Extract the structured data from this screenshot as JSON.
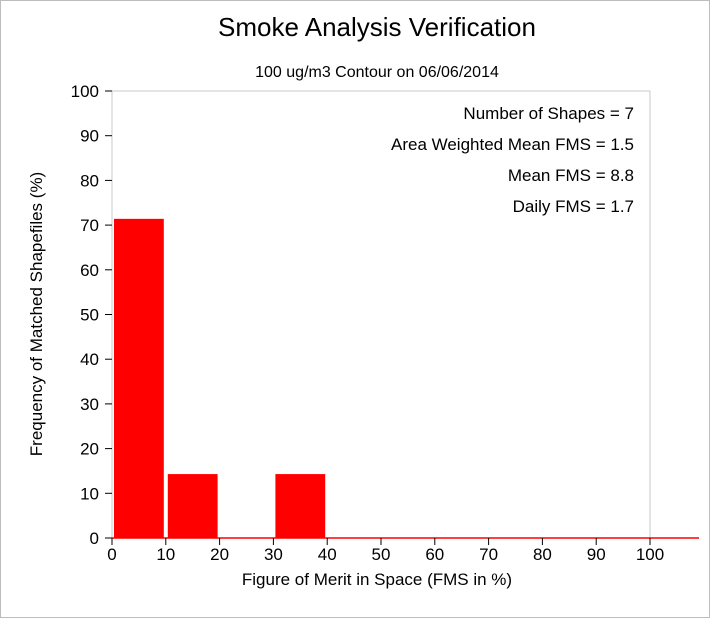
{
  "chart_data": {
    "type": "bar",
    "title": "Smoke Analysis Verification",
    "subtitle": "100 ug/m3 Contour on 06/06/2014",
    "xlabel": "Figure of Merit in Space (FMS in %)",
    "ylabel": "Frequency of Matched Shapefiles (%)",
    "xlim": [
      0,
      100
    ],
    "ylim": [
      0,
      100
    ],
    "xticks": [
      0,
      10,
      20,
      30,
      40,
      50,
      60,
      70,
      80,
      90,
      100
    ],
    "yticks": [
      0,
      10,
      20,
      30,
      40,
      50,
      60,
      70,
      80,
      90,
      100
    ],
    "bins": [
      {
        "from": 0,
        "to": 10,
        "value": 71.4
      },
      {
        "from": 10,
        "to": 20,
        "value": 14.3
      },
      {
        "from": 20,
        "to": 30,
        "value": 0
      },
      {
        "from": 30,
        "to": 40,
        "value": 14.3
      },
      {
        "from": 40,
        "to": 50,
        "value": 0
      },
      {
        "from": 50,
        "to": 60,
        "value": 0
      },
      {
        "from": 60,
        "to": 70,
        "value": 0
      },
      {
        "from": 70,
        "to": 80,
        "value": 0
      },
      {
        "from": 80,
        "to": 90,
        "value": 0
      },
      {
        "from": 90,
        "to": 100,
        "value": 0
      }
    ],
    "bar_color": "#ff0000",
    "grid": false,
    "annotations": [
      "Number of Shapes = 7",
      "Area Weighted Mean FMS = 1.5",
      "Mean FMS = 8.8",
      "Daily FMS = 1.7"
    ]
  }
}
